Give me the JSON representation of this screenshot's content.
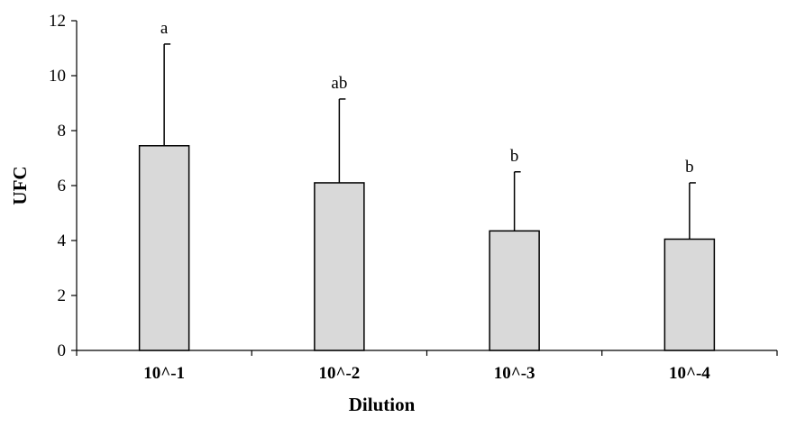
{
  "chart_data": {
    "type": "bar",
    "categories": [
      "10^-1",
      "10^-2",
      "10^-3",
      "10^-4"
    ],
    "values": [
      7.45,
      6.1,
      4.35,
      4.05
    ],
    "error_upper": [
      11.15,
      9.15,
      6.5,
      6.1
    ],
    "annotations": [
      "a",
      "ab",
      "b",
      "b"
    ],
    "xlabel": "Dilution",
    "ylabel": "UFC",
    "ylim": [
      0,
      12
    ],
    "yticks": [
      0,
      2,
      4,
      6,
      8,
      10,
      12
    ],
    "grid": false,
    "legend": "none",
    "bar_color": "#d9d9d9",
    "edge_color": "#000000"
  }
}
